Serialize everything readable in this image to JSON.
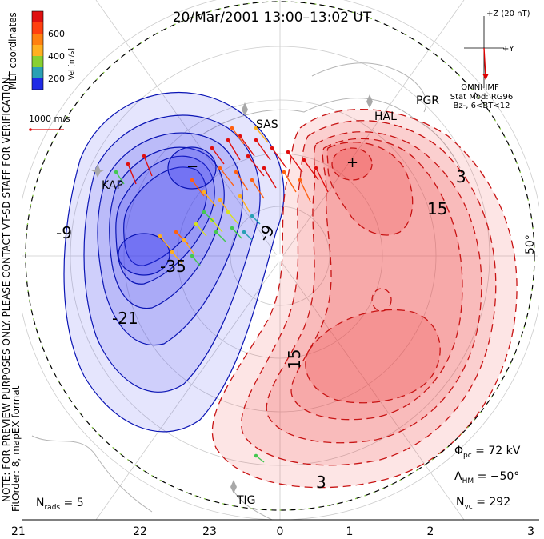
{
  "title": "20/Mar/2001  13:00–13:02  UT",
  "colorbar": {
    "unit_label": "Vel [m/s]",
    "ticks": [
      "200",
      "400",
      "600"
    ],
    "colors": [
      "#1f2ae6",
      "#2aa0b4",
      "#44c850",
      "#d8e020",
      "#ffb020",
      "#ff6010",
      "#e01010"
    ]
  },
  "coord_label": "MLT coordinates",
  "scale_vector": "1000 m/s",
  "imf": {
    "z_label": "+Z (20 nT)",
    "y_label": "+Y",
    "source": "OMNI IMF",
    "stat_mod": "Stat Mod: RG96",
    "condition": "Bz-, 6<BT<12"
  },
  "lat_label": "50°",
  "note_line1": "NOTE: FOR PREVIEW PURPOSES ONLY. PLEASE CONTACT VT-SD STAFF FOR VERIFICATION.",
  "note_line2": "FitOrder: 8,  mapEX format",
  "stations": [
    "KAP",
    "SAS",
    "PGR",
    "HAL",
    "TIG"
  ],
  "contours": {
    "negative": [
      "-9",
      "-35",
      "-21",
      "-9"
    ],
    "positive": [
      "15",
      "3",
      "15",
      "3"
    ],
    "marker_min": "−",
    "marker_max": "+"
  },
  "stats": {
    "nrads": "N",
    "nrads_sub": "rads",
    "nrads_val": " = 5",
    "phi": "Φ",
    "phi_sub": "pc",
    "phi_val": " = 72 kV",
    "lambda": "Λ",
    "lambda_sub": "HM",
    "lambda_val": " = −50°",
    "nvc": "N",
    "nvc_sub": "vc",
    "nvc_val": " = 292"
  },
  "mlt_ticks": [
    "21",
    "22",
    "23",
    "0",
    "1",
    "2",
    "3"
  ],
  "colors": {
    "negative_fill": "#3333ee",
    "positive_fill": "#ee3333",
    "negative_line": "#0a14b4",
    "positive_line": "#c81414",
    "imf_red": "#dd0000"
  }
}
